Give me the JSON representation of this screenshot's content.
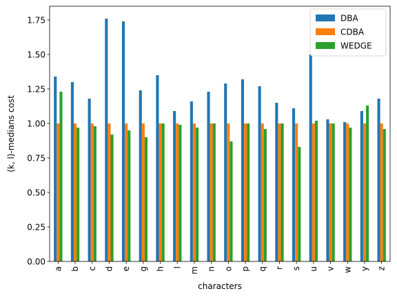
{
  "chart_data": {
    "type": "bar",
    "xlabel": "characters",
    "ylabel": "(k, l)-medians cost",
    "ylim": [
      0,
      1.85
    ],
    "yticks": [
      0.0,
      0.25,
      0.5,
      0.75,
      1.0,
      1.25,
      1.5,
      1.75
    ],
    "ytick_labels": [
      "0.00",
      "0.25",
      "0.50",
      "0.75",
      "1.00",
      "1.25",
      "1.50",
      "1.75"
    ],
    "categories": [
      "a",
      "b",
      "c",
      "d",
      "e",
      "g",
      "h",
      "l",
      "m",
      "n",
      "o",
      "p",
      "q",
      "r",
      "s",
      "u",
      "v",
      "w",
      "y",
      "z"
    ],
    "series": [
      {
        "name": "DBA",
        "color": "#1f77b4",
        "values": [
          1.34,
          1.3,
          1.18,
          1.76,
          1.74,
          1.24,
          1.35,
          1.09,
          1.16,
          1.23,
          1.29,
          1.32,
          1.27,
          1.15,
          1.11,
          1.5,
          1.03,
          1.01,
          1.09,
          1.18
        ]
      },
      {
        "name": "CDBA",
        "color": "#ff7f0e",
        "values": [
          1.0,
          1.0,
          1.0,
          1.0,
          1.0,
          1.0,
          1.0,
          1.0,
          1.0,
          1.0,
          1.0,
          1.0,
          1.0,
          1.0,
          1.0,
          1.0,
          1.0,
          1.0,
          1.0,
          1.0
        ]
      },
      {
        "name": "WEDGE",
        "color": "#2ca02c",
        "values": [
          1.23,
          0.97,
          0.98,
          0.92,
          0.95,
          0.9,
          1.0,
          0.99,
          0.97,
          1.0,
          0.87,
          1.0,
          0.96,
          1.0,
          0.83,
          1.02,
          1.0,
          0.97,
          1.13,
          0.96
        ]
      }
    ],
    "legend_position": "upper right",
    "grid": false
  }
}
